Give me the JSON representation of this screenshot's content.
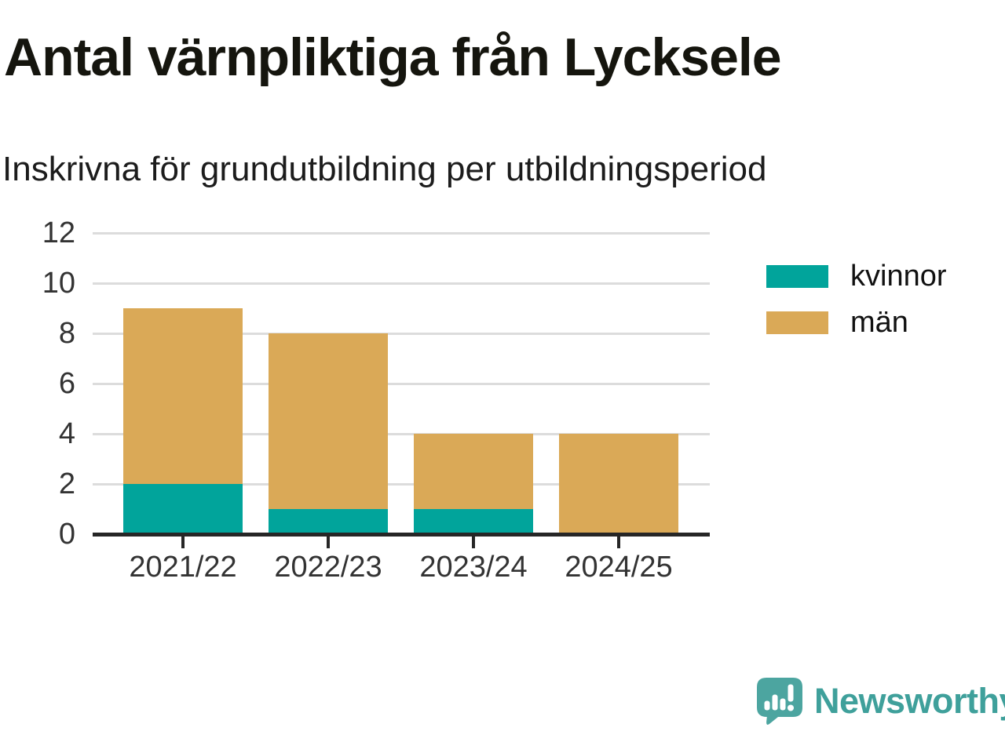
{
  "header": {
    "title": "Antal värnpliktiga från Lycksele",
    "subtitle": "Inskrivna för grundutbildning per utbildningsperiod"
  },
  "chart_data": {
    "type": "bar",
    "stacked": true,
    "title": "Antal värnpliktiga från Lycksele",
    "subtitle": "Inskrivna för grundutbildning per utbildningsperiod",
    "categories": [
      "2021/22",
      "2022/23",
      "2023/24",
      "2024/25"
    ],
    "series": [
      {
        "name": "kvinnor",
        "color": "#01a49b",
        "values": [
          2,
          1,
          1,
          0
        ]
      },
      {
        "name": "män",
        "color": "#daa957",
        "values": [
          7,
          7,
          3,
          4
        ]
      }
    ],
    "totals": [
      9,
      8,
      4,
      4
    ],
    "xlabel": "",
    "ylabel": "",
    "ylim": [
      0,
      12
    ],
    "yticks": [
      0,
      2,
      4,
      6,
      8,
      10,
      12
    ],
    "grid": true,
    "gridline_color": "#dcdcdc",
    "axis_color": "#262626",
    "tick_label_color": "#333333",
    "legend_position": "right"
  },
  "branding": {
    "wordmark": "Newsworthy",
    "color": "#3fa09b",
    "icon": "bar-chart-speech-bubble-icon"
  }
}
